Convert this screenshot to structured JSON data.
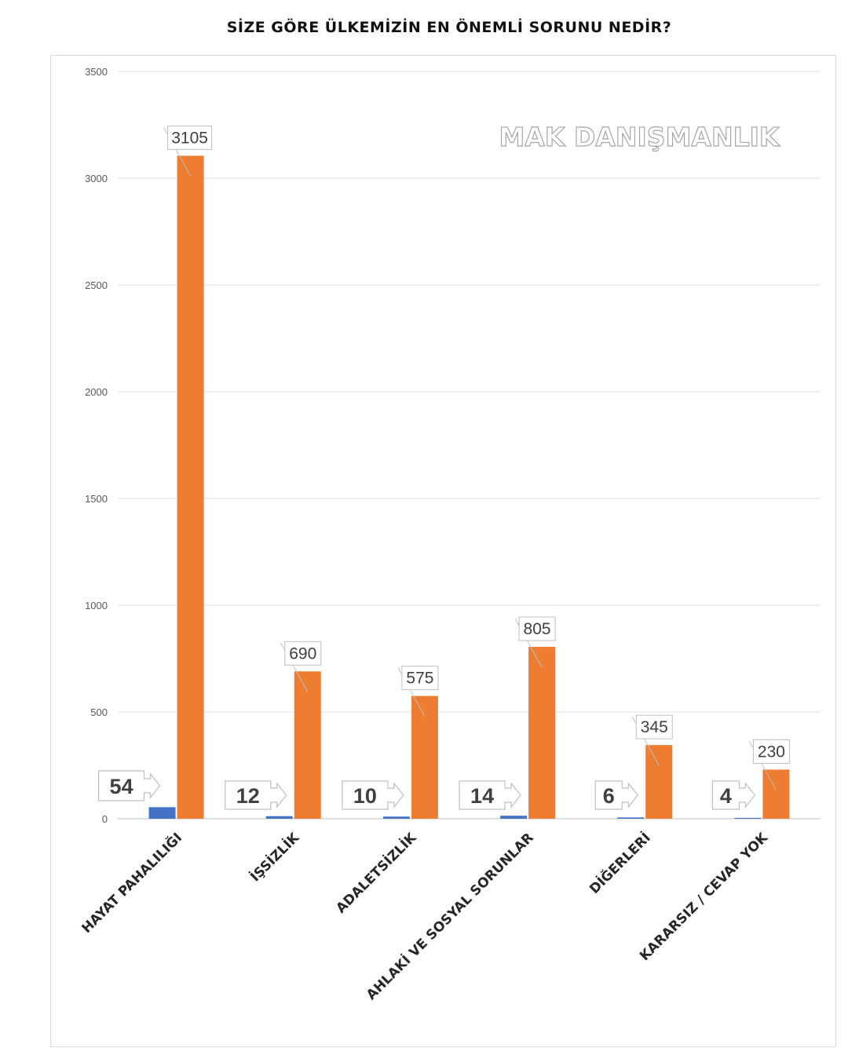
{
  "chart_data": {
    "type": "bar",
    "title": "SİZE GÖRE ÜLKEMİZİN EN ÖNEMLİ SORUNU NEDİR?",
    "watermark": "MAK DANIŞMANLIK",
    "categories": [
      "HAYAT PAHALILIĞI",
      "İŞSİZLİK",
      "ADALETSİZLİK",
      "AHLAKİ VE SOSYAL SORUNLAR",
      "DİĞERLERİ",
      "KARARSIZ / CEVAP YOK"
    ],
    "series": [
      {
        "values": [
          54,
          12,
          10,
          14,
          6,
          4
        ],
        "color": "#4472c4"
      },
      {
        "values": [
          3105,
          690,
          575,
          805,
          345,
          230
        ],
        "color": "#ed7d31"
      }
    ],
    "ylim": [
      0,
      3500
    ],
    "yticks": [
      "0",
      "500",
      "1000",
      "1500",
      "2000",
      "2500",
      "3000",
      "3500"
    ],
    "grid": true,
    "legend": "none"
  }
}
